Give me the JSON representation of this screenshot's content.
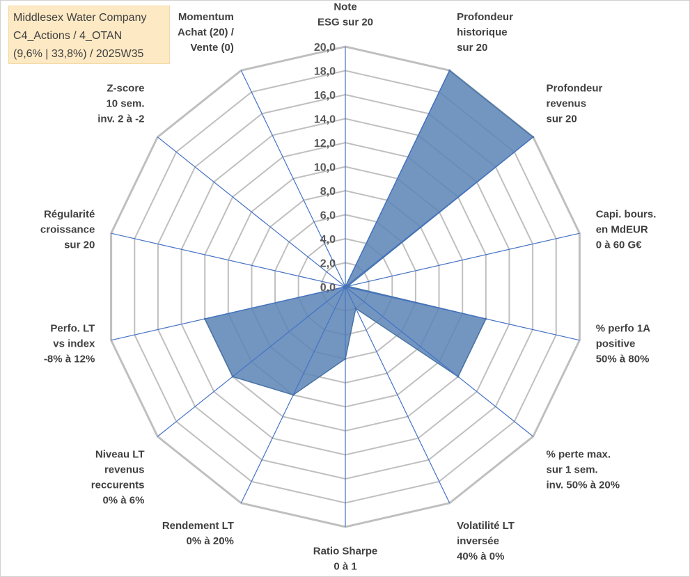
{
  "title_lines": [
    "Middlesex Water Company",
    "C4_Actions / 4_OTAN",
    "(9,6% | 33,8%) / 2025W35"
  ],
  "chart_data": {
    "type": "radar",
    "r_range": [
      0,
      20
    ],
    "r_step": 2,
    "tick_labels": [
      "0,0",
      "2,0",
      "4,0",
      "6,0",
      "8,0",
      "10,0",
      "12,0",
      "14,0",
      "16,0",
      "18,0",
      "20,0"
    ],
    "grid": true,
    "categories": [
      {
        "label": [
          "Note",
          "ESG sur 20"
        ],
        "value": 0
      },
      {
        "label": [
          "Profondeur",
          "historique",
          "sur 20"
        ],
        "value": 20
      },
      {
        "label": [
          "Profondeur",
          "revenus",
          "sur 20"
        ],
        "value": 20
      },
      {
        "label": [
          "Capi. bours.",
          "en MdEUR",
          "0 à 60 G€"
        ],
        "value": 0.2
      },
      {
        "label": [
          "% perfo 1A",
          "positive",
          "50% à 80%"
        ],
        "value": 12
      },
      {
        "label": [
          "% perte max.",
          "sur 1 sem.",
          "inv. 50% à 20%"
        ],
        "value": 12
      },
      {
        "label": [
          "Volatilité LT",
          "inversée",
          "40% à 0%"
        ],
        "value": 2
      },
      {
        "label": [
          "Ratio Sharpe",
          "0 à 1"
        ],
        "value": 6
      },
      {
        "label": [
          "Rendement LT",
          "0% à 20%"
        ],
        "value": 10
      },
      {
        "label": [
          "Niveau LT",
          "revenus",
          "reccurents",
          "0% à 6%"
        ],
        "value": 12
      },
      {
        "label": [
          "Perfo. LT",
          "vs index",
          "-8% à 12%"
        ],
        "value": 12
      },
      {
        "label": [
          "Régularité",
          "croissance",
          "sur 20"
        ],
        "value": 0
      },
      {
        "label": [
          "Z-score",
          "10 sem.",
          "inv. 2 à -2"
        ],
        "value": 0
      },
      {
        "label": [
          "Momentum",
          "Achat (20) /",
          "Vente (0)"
        ],
        "value": 0
      }
    ],
    "colors": {
      "fill": "#5a84b6",
      "stroke": "#4a74a6",
      "grid": "#bfbfbf",
      "spoke": "#4472c4"
    }
  }
}
